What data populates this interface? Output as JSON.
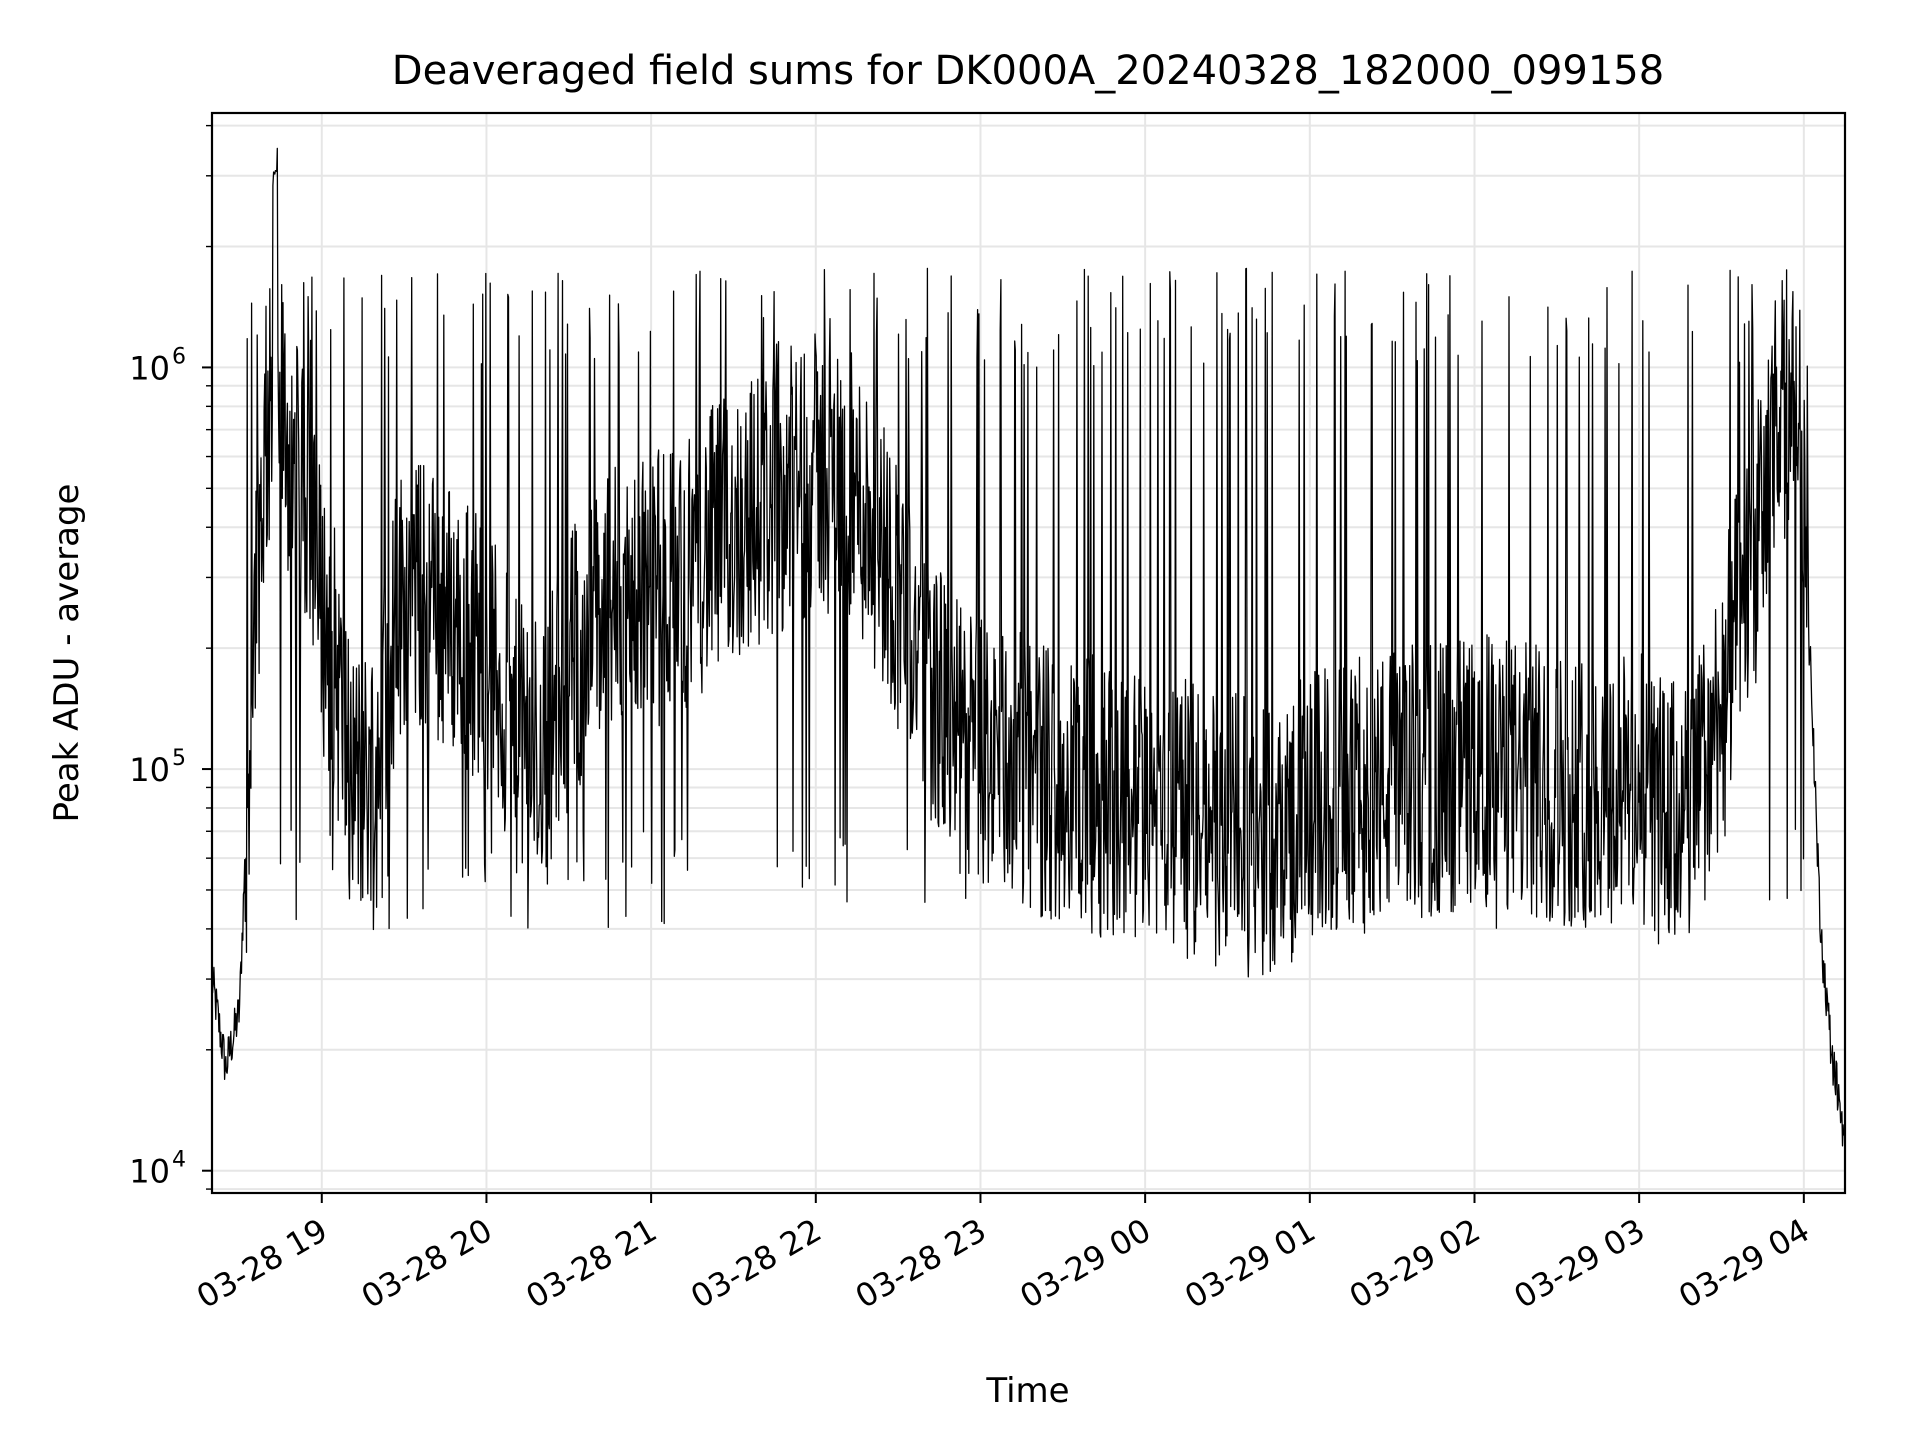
{
  "chart_data": {
    "type": "line",
    "title": "Deaveraged field sums for DK000A_20240328_182000_099158",
    "xlabel": "Time",
    "ylabel": "Peak ADU - average",
    "y_scale": "log",
    "ylim": [
      8800,
      4300000
    ],
    "xlim": [
      "2024-03-28T18:20:00",
      "2024-03-29T04:15:00"
    ],
    "x_ticks": [
      {
        "t": "2024-03-28T19:00:00",
        "label": "03-28 19"
      },
      {
        "t": "2024-03-28T20:00:00",
        "label": "03-28 20"
      },
      {
        "t": "2024-03-28T21:00:00",
        "label": "03-28 21"
      },
      {
        "t": "2024-03-28T22:00:00",
        "label": "03-28 22"
      },
      {
        "t": "2024-03-28T23:00:00",
        "label": "03-28 23"
      },
      {
        "t": "2024-03-29T00:00:00",
        "label": "03-29 00"
      },
      {
        "t": "2024-03-29T01:00:00",
        "label": "03-29 01"
      },
      {
        "t": "2024-03-29T02:00:00",
        "label": "03-29 02"
      },
      {
        "t": "2024-03-29T03:00:00",
        "label": "03-29 03"
      },
      {
        "t": "2024-03-29T04:00:00",
        "label": "03-29 04"
      }
    ],
    "y_ticks": [
      {
        "value": 10000,
        "base": "10",
        "exp": "4"
      },
      {
        "value": 100000,
        "base": "10",
        "exp": "5"
      },
      {
        "value": 1000000,
        "base": "10",
        "exp": "6"
      }
    ],
    "grid": true,
    "line_color": "#000000",
    "x": [
      "2024-03-28T18:20:00",
      "2024-03-28T18:25:00",
      "2024-03-28T18:30:00",
      "2024-03-28T18:33:00",
      "2024-03-28T18:36:00",
      "2024-03-28T18:40:00",
      "2024-03-28T18:45:00",
      "2024-03-28T18:50:00",
      "2024-03-28T18:55:00",
      "2024-03-28T19:00:00",
      "2024-03-28T19:05:00",
      "2024-03-28T19:10:00",
      "2024-03-28T19:15:00",
      "2024-03-28T19:20:00",
      "2024-03-28T19:25:00",
      "2024-03-28T19:30:00",
      "2024-03-28T19:40:00",
      "2024-03-28T19:50:00",
      "2024-03-28T20:00:00",
      "2024-03-28T20:10:00",
      "2024-03-28T20:20:00",
      "2024-03-28T20:30:00",
      "2024-03-28T20:40:00",
      "2024-03-28T20:50:00",
      "2024-03-28T21:00:00",
      "2024-03-28T21:10:00",
      "2024-03-28T21:20:00",
      "2024-03-28T21:30:00",
      "2024-03-28T21:40:00",
      "2024-03-28T21:50:00",
      "2024-03-28T22:00:00",
      "2024-03-28T22:10:00",
      "2024-03-28T22:20:00",
      "2024-03-28T22:30:00",
      "2024-03-28T22:40:00",
      "2024-03-28T22:50:00",
      "2024-03-28T23:00:00",
      "2024-03-28T23:15:00",
      "2024-03-28T23:30:00",
      "2024-03-28T23:45:00",
      "2024-03-29T00:00:00",
      "2024-03-29T00:15:00",
      "2024-03-29T00:30:00",
      "2024-03-29T00:45:00",
      "2024-03-29T01:00:00",
      "2024-03-29T01:15:00",
      "2024-03-29T01:30:00",
      "2024-03-29T01:45:00",
      "2024-03-29T02:00:00",
      "2024-03-29T02:15:00",
      "2024-03-29T02:30:00",
      "2024-03-29T02:45:00",
      "2024-03-29T03:00:00",
      "2024-03-29T03:10:00",
      "2024-03-29T03:20:00",
      "2024-03-29T03:30:00",
      "2024-03-29T03:40:00",
      "2024-03-29T03:50:00",
      "2024-03-29T03:55:00",
      "2024-03-29T04:00:00",
      "2024-03-29T04:03:00",
      "2024-03-29T04:06:00",
      "2024-03-29T04:10:00",
      "2024-03-29T04:15:00"
    ],
    "y": [
      30000,
      18000,
      25000,
      90000,
      300000,
      700000,
      800000,
      550000,
      400000,
      250000,
      180000,
      100000,
      90000,
      110000,
      200000,
      280000,
      260000,
      230000,
      200000,
      120000,
      110000,
      180000,
      230000,
      270000,
      280000,
      300000,
      350000,
      400000,
      450000,
      500000,
      550000,
      520000,
      420000,
      280000,
      180000,
      120000,
      110000,
      100000,
      90000,
      85000,
      80000,
      75000,
      70000,
      65000,
      80000,
      85000,
      90000,
      95000,
      100000,
      95000,
      90000,
      90000,
      90000,
      75000,
      80000,
      150000,
      300000,
      600000,
      900000,
      600000,
      150000,
      40000,
      20000,
      12000
    ]
  }
}
